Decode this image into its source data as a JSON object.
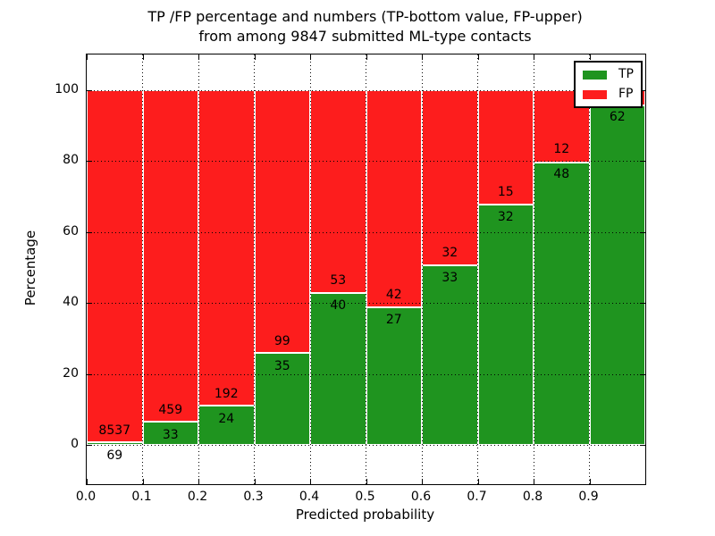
{
  "title": {
    "line1": "TP /FP percentage and numbers (TP-bottom value, FP-upper)",
    "line2": "from among 9847 submitted ML-type contacts"
  },
  "x_axis": {
    "label": "Predicted probability",
    "ticks": [
      "0.0",
      "0.1",
      "0.2",
      "0.3",
      "0.4",
      "0.5",
      "0.6",
      "0.7",
      "0.8",
      "0.9"
    ]
  },
  "y_axis": {
    "label": "Percentage",
    "ticks": [
      "0",
      "20",
      "40",
      "60",
      "80",
      "100"
    ]
  },
  "legend": {
    "items": [
      {
        "label": "TP",
        "color": "#1f941f"
      },
      {
        "label": "FP",
        "color": "#fd1d1d"
      }
    ]
  },
  "colors": {
    "tp": "#1f941f",
    "fp": "#fd1d1d",
    "grid": "#000000",
    "text": "#000000"
  },
  "chart_data": {
    "type": "bar",
    "variant": "stacked-percentage",
    "title": "TP /FP percentage and numbers (TP-bottom value, FP-upper) from among 9847 submitted ML-type contacts",
    "xlabel": "Predicted probability",
    "ylabel": "Percentage",
    "xlim": [
      0.0,
      1.0
    ],
    "ylim": [
      -11,
      110
    ],
    "grid": "dotted",
    "legend_position": "upper-right",
    "total_contacts": 9847,
    "series_names": [
      "TP",
      "FP"
    ],
    "bins": [
      {
        "range": [
          0.0,
          0.1
        ],
        "tp": 69,
        "fp": 8537,
        "tp_pct": 0.8
      },
      {
        "range": [
          0.1,
          0.2
        ],
        "tp": 33,
        "fp": 459,
        "tp_pct": 6.7
      },
      {
        "range": [
          0.2,
          0.3
        ],
        "tp": 24,
        "fp": 192,
        "tp_pct": 11.1
      },
      {
        "range": [
          0.3,
          0.4
        ],
        "tp": 35,
        "fp": 99,
        "tp_pct": 26.1
      },
      {
        "range": [
          0.4,
          0.5
        ],
        "tp": 40,
        "fp": 53,
        "tp_pct": 43.0
      },
      {
        "range": [
          0.5,
          0.6
        ],
        "tp": 27,
        "fp": 42,
        "tp_pct": 39.1
      },
      {
        "range": [
          0.6,
          0.7
        ],
        "tp": 33,
        "fp": 32,
        "tp_pct": 50.8
      },
      {
        "range": [
          0.7,
          0.8
        ],
        "tp": 32,
        "fp": 15,
        "tp_pct": 68.1
      },
      {
        "range": [
          0.8,
          0.9
        ],
        "tp": 48,
        "fp": 12,
        "tp_pct": 80.0
      },
      {
        "range": [
          0.9,
          1.0
        ],
        "tp": 62,
        "fp": null,
        "tp_pct": 96.2
      }
    ]
  }
}
